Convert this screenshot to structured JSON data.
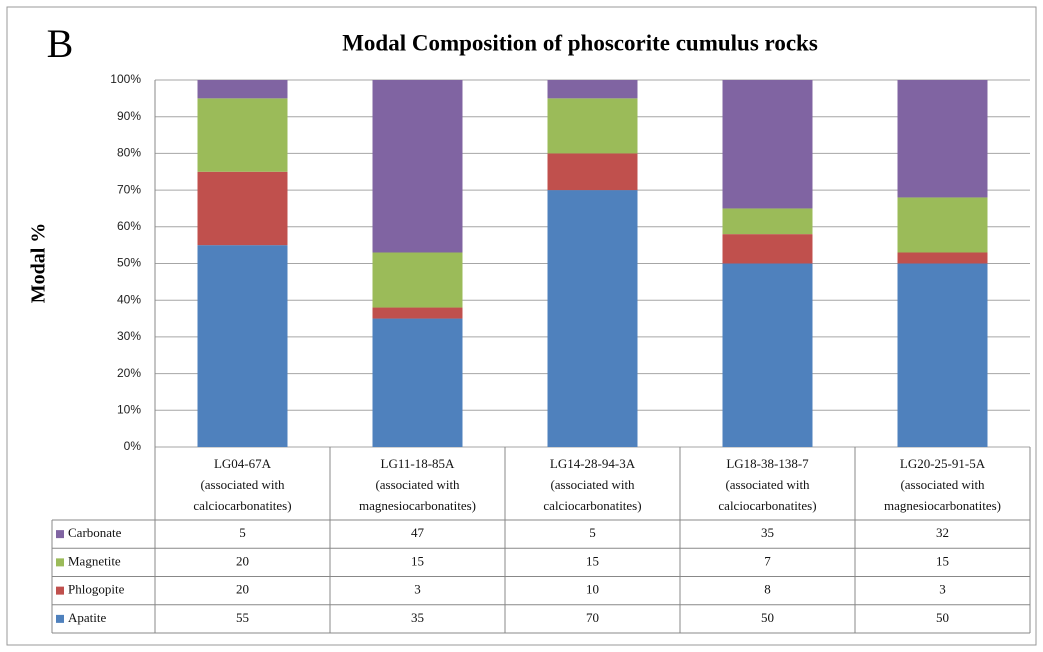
{
  "chart_data": {
    "type": "stacked_bar",
    "panel_label": "B",
    "title": "Modal Composition of phoscorite cumulus rocks",
    "y_label": "Modal %",
    "categories": [
      [
        "LG04-67A",
        "(associated with",
        "calciocarbonatites)"
      ],
      [
        "LG11-18-85A",
        "(associated with",
        "magnesiocarbonatites)"
      ],
      [
        "LG14-28-94-3A",
        "(associated with",
        "calciocarbonatites)"
      ],
      [
        "LG18-38-138-7",
        "(associated with",
        "calciocarbonatites)"
      ],
      [
        "LG20-25-91-5A",
        "(associated with",
        "magnesiocarbonatites)"
      ]
    ],
    "series": [
      {
        "name": "Apatite",
        "color": "#4f81bd",
        "values": [
          55,
          35,
          70,
          50,
          50
        ]
      },
      {
        "name": "Phlogopite",
        "color": "#c0504d",
        "values": [
          20,
          3,
          10,
          8,
          3
        ]
      },
      {
        "name": "Magnetite",
        "color": "#9bbb59",
        "values": [
          20,
          15,
          15,
          7,
          15
        ]
      },
      {
        "name": "Carbonate",
        "color": "#8064a2",
        "values": [
          5,
          47,
          5,
          35,
          32
        ]
      }
    ],
    "ylim": [
      0,
      100
    ],
    "yticks": [
      {
        "value": 0,
        "label": "0%"
      },
      {
        "value": 10,
        "label": "10%"
      },
      {
        "value": 20,
        "label": "20%"
      },
      {
        "value": 30,
        "label": "30%"
      },
      {
        "value": 40,
        "label": "40%"
      },
      {
        "value": 50,
        "label": "50%"
      },
      {
        "value": 60,
        "label": "60%"
      },
      {
        "value": 70,
        "label": "70%"
      },
      {
        "value": 80,
        "label": "80%"
      },
      {
        "value": 90,
        "label": "90%"
      },
      {
        "value": 100,
        "label": "100%"
      }
    ],
    "grid": true,
    "data_table": true
  }
}
